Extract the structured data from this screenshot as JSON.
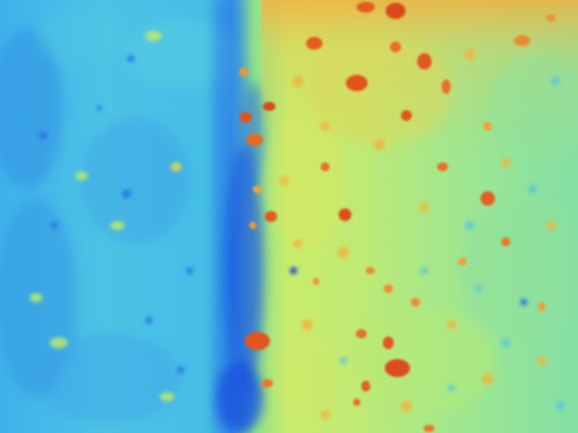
{
  "image": {
    "kind": "false-color thermal image",
    "palette": {
      "cold": "#1e5fe0",
      "cool": "#2f9ee8",
      "mid_cool": "#4cc6df",
      "mid": "#7fe0a4",
      "warm": "#c8ee6a",
      "hot": "#f0a636",
      "hottest": "#e04a1c"
    }
  }
}
